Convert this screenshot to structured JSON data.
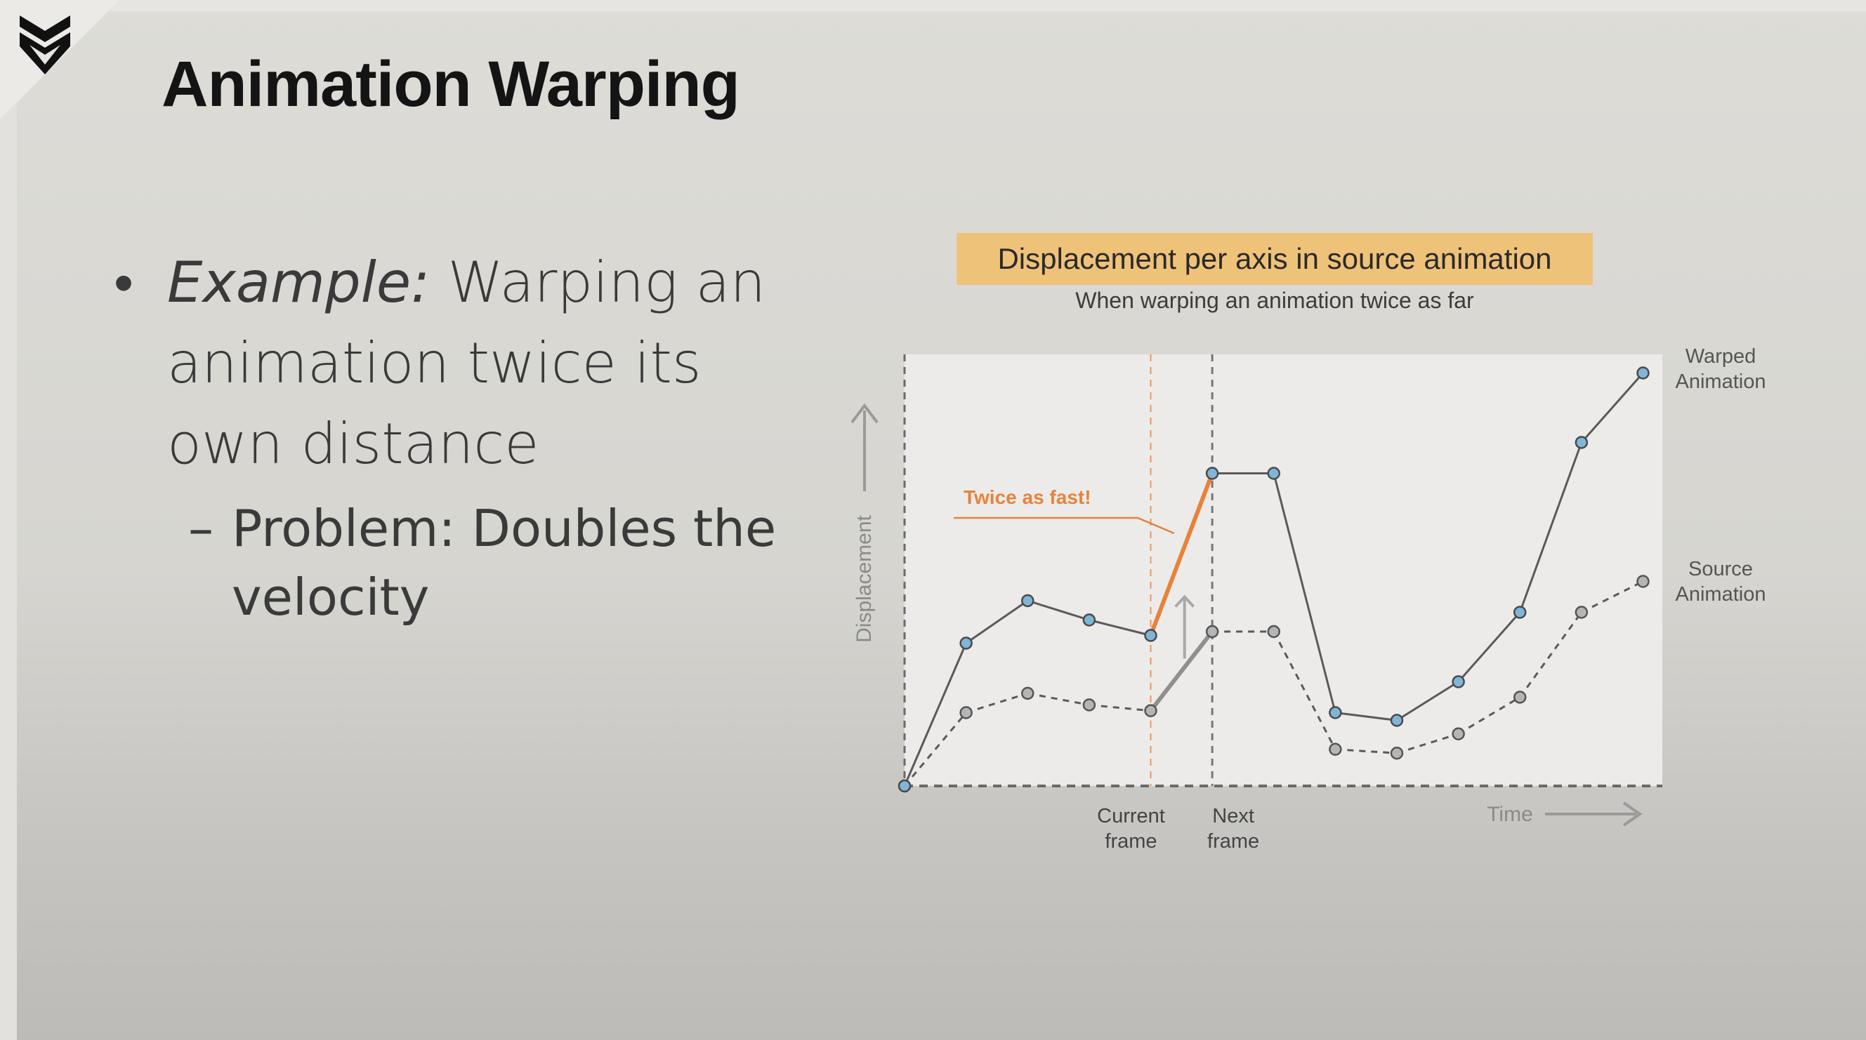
{
  "slide": {
    "title": "Animation Warping",
    "logo_icon": "chevron-shield-logo-icon",
    "bullet": {
      "em": "Example:",
      "rest": " Warping an animation twice its own distance",
      "dot": "•"
    },
    "sub_bullet": {
      "dash": "–",
      "text": "Problem: Doubles the velocity"
    }
  },
  "colors": {
    "warped": "#5a5a5a",
    "source": "#5a5a5a",
    "highlight": "#e8823a",
    "marker_warped": "#7fb6d8",
    "marker_source": "#b5b5b5",
    "title_box": "#efc27a",
    "plot_bg": "#ecebe9"
  },
  "chart_data": {
    "type": "line",
    "title": "Displacement per axis in source animation",
    "subtitle": "When warping an animation twice as far",
    "xlabel": "Time",
    "ylabel": "Displacement",
    "x": [
      0,
      1,
      2,
      3,
      4,
      5,
      6,
      7,
      8,
      9,
      10,
      11,
      12
    ],
    "ylim": [
      0,
      11
    ],
    "xlim": [
      0,
      12.2
    ],
    "grid": false,
    "series": [
      {
        "name": "Warped\nAnimation",
        "style": "solid",
        "values": [
          0,
          3.7,
          4.8,
          4.3,
          3.9,
          8.1,
          8.1,
          1.9,
          1.7,
          2.7,
          4.5,
          8.9,
          10.7
        ]
      },
      {
        "name": "Source\nAnimation",
        "style": "dashed",
        "values": [
          0,
          1.9,
          2.4,
          2.1,
          1.95,
          4.0,
          4.0,
          0.95,
          0.85,
          1.35,
          2.3,
          4.5,
          5.3
        ]
      }
    ],
    "vlines": [
      {
        "x": 4,
        "label": "Current\nframe",
        "style": "orange-dashed"
      },
      {
        "x": 5,
        "label": "Next\nframe",
        "style": "gray-dashed"
      }
    ],
    "annotations": [
      {
        "text": "Twice as fast!",
        "points_to_segment": [
          4,
          5
        ],
        "series": "warped"
      }
    ]
  }
}
